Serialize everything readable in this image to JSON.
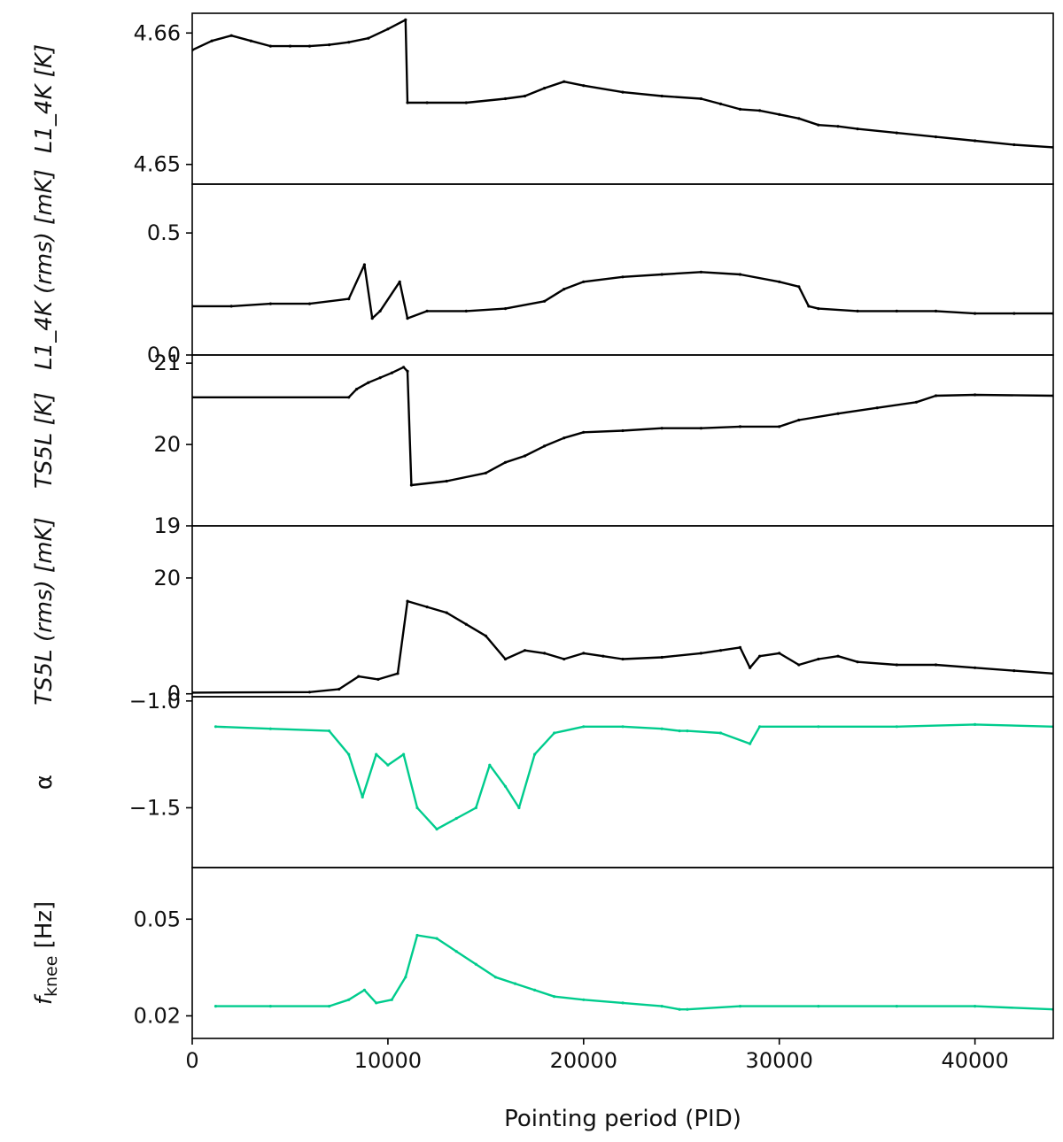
{
  "chart_data": {
    "type": "line",
    "xlabel": "Pointing period (PID)",
    "xlim": [
      0,
      44000
    ],
    "xticks": [
      0,
      10000,
      20000,
      30000,
      40000
    ],
    "xtick_labels": [
      "0",
      "10000",
      "20000",
      "30000",
      "40000"
    ],
    "panels": [
      {
        "id": "l1_4k",
        "ylabel": "L1_4K [K]",
        "color": "#000000",
        "ylim": [
          4.6485,
          4.6615
        ],
        "yticks": [
          4.65,
          4.66
        ],
        "ytick_labels": [
          "4.65",
          "4.66"
        ],
        "x": [
          0,
          1000,
          2000,
          3000,
          4000,
          5000,
          6000,
          7000,
          8000,
          9000,
          10000,
          10900,
          11000,
          12000,
          14000,
          16000,
          17000,
          18000,
          19000,
          20000,
          22000,
          24000,
          26000,
          27000,
          28000,
          29000,
          30000,
          31000,
          32000,
          33000,
          34000,
          36000,
          38000,
          40000,
          42000,
          44000
        ],
        "values": [
          4.6587,
          4.6594,
          4.6598,
          4.6594,
          4.659,
          4.659,
          4.659,
          4.6591,
          4.6593,
          4.6596,
          4.6603,
          4.661,
          4.6547,
          4.6547,
          4.6547,
          4.655,
          4.6552,
          4.6558,
          4.6563,
          4.656,
          4.6555,
          4.6552,
          4.655,
          4.6546,
          4.6542,
          4.6541,
          4.6538,
          4.6535,
          4.653,
          4.6529,
          4.6527,
          4.6524,
          4.6521,
          4.6518,
          4.6515,
          4.6513
        ]
      },
      {
        "id": "l1_4k_rms",
        "ylabel": "L1_4K (rms) [mK]",
        "color": "#000000",
        "ylim": [
          0.0,
          0.7
        ],
        "yticks": [
          0.0,
          0.5
        ],
        "ytick_labels": [
          "0.0",
          "0.5"
        ],
        "x": [
          0,
          2000,
          4000,
          6000,
          8000,
          8800,
          9200,
          9600,
          10600,
          11000,
          12000,
          14000,
          16000,
          18000,
          19000,
          20000,
          22000,
          24000,
          26000,
          28000,
          30000,
          31000,
          31500,
          32000,
          34000,
          36000,
          38000,
          40000,
          42000,
          44000
        ],
        "values": [
          0.2,
          0.2,
          0.21,
          0.21,
          0.23,
          0.37,
          0.15,
          0.18,
          0.3,
          0.15,
          0.18,
          0.18,
          0.19,
          0.22,
          0.27,
          0.3,
          0.32,
          0.33,
          0.34,
          0.33,
          0.3,
          0.28,
          0.2,
          0.19,
          0.18,
          0.18,
          0.18,
          0.17,
          0.17,
          0.17
        ]
      },
      {
        "id": "ts5l",
        "ylabel": "TS5L [K]",
        "color": "#000000",
        "ylim": [
          19.0,
          21.1
        ],
        "yticks": [
          19,
          20,
          21
        ],
        "ytick_labels": [
          "19",
          "20",
          "21"
        ],
        "x": [
          0,
          8000,
          8400,
          9000,
          9600,
          10200,
          10800,
          11000,
          11200,
          13000,
          15000,
          16000,
          17000,
          18000,
          19000,
          20000,
          22000,
          24000,
          26000,
          28000,
          30000,
          31000,
          33000,
          35000,
          37000,
          38000,
          40000,
          44000
        ],
        "values": [
          20.58,
          20.58,
          20.68,
          20.76,
          20.82,
          20.88,
          20.95,
          20.9,
          19.5,
          19.55,
          19.65,
          19.78,
          19.86,
          19.98,
          20.08,
          20.15,
          20.17,
          20.2,
          20.2,
          20.22,
          20.22,
          20.3,
          20.38,
          20.45,
          20.52,
          20.6,
          20.61,
          20.6
        ]
      },
      {
        "id": "ts5l_rms",
        "ylabel": "TS5L (rms) [mK]",
        "color": "#000000",
        "ylim": [
          -0.5,
          29
        ],
        "yticks": [
          0,
          20
        ],
        "ytick_labels": [
          "0",
          "20"
        ],
        "x": [
          0,
          6000,
          7500,
          8500,
          9500,
          10500,
          11000,
          12000,
          13000,
          14000,
          15000,
          16000,
          17000,
          18000,
          19000,
          20000,
          21000,
          22000,
          24000,
          26000,
          27000,
          28000,
          28500,
          29000,
          30000,
          31000,
          32000,
          33000,
          34000,
          36000,
          38000,
          40000,
          42000,
          44000
        ],
        "values": [
          0.2,
          0.3,
          0.8,
          3.0,
          2.5,
          3.5,
          16.0,
          15.0,
          14.0,
          12.0,
          10.0,
          6.0,
          7.5,
          7.0,
          6.0,
          7.0,
          6.5,
          6.0,
          6.3,
          7.0,
          7.5,
          8.0,
          4.5,
          6.5,
          7.0,
          5.0,
          6.0,
          6.5,
          5.5,
          5.0,
          5.0,
          4.5,
          4.0,
          3.5
        ]
      },
      {
        "id": "alpha",
        "ylabel": "α",
        "color": "#00cc8d",
        "ylim": [
          -1.78,
          -0.98
        ],
        "yticks": [
          -1.0,
          -1.5
        ],
        "ytick_labels": [
          "−1.0",
          "−1.5"
        ],
        "x": [
          1200,
          4000,
          7000,
          8000,
          8700,
          9400,
          10000,
          10800,
          11500,
          12500,
          13500,
          14500,
          15200,
          16000,
          16700,
          17500,
          18500,
          20000,
          22000,
          24000,
          24900,
          25300,
          27000,
          28500,
          29000,
          32000,
          36000,
          40000,
          44000
        ],
        "values": [
          -1.12,
          -1.13,
          -1.14,
          -1.25,
          -1.45,
          -1.25,
          -1.3,
          -1.25,
          -1.5,
          -1.6,
          -1.55,
          -1.5,
          -1.3,
          -1.4,
          -1.5,
          -1.25,
          -1.15,
          -1.12,
          -1.12,
          -1.13,
          -1.14,
          -1.14,
          -1.15,
          -1.2,
          -1.12,
          -1.12,
          -1.12,
          -1.11,
          -1.12
        ]
      },
      {
        "id": "fknee",
        "ylabel": "f_knee [Hz]",
        "color": "#00cc8d",
        "ylim": [
          0.013,
          0.066
        ],
        "yticks": [
          0.02,
          0.05
        ],
        "ytick_labels": [
          "0.02",
          "0.05"
        ],
        "x": [
          1200,
          4000,
          7000,
          8000,
          8800,
          9400,
          10200,
          10900,
          11500,
          12500,
          13500,
          14500,
          15500,
          16500,
          17500,
          18500,
          20000,
          22000,
          24000,
          24900,
          25300,
          28000,
          32000,
          36000,
          40000,
          44000
        ],
        "values": [
          0.023,
          0.023,
          0.023,
          0.025,
          0.028,
          0.024,
          0.025,
          0.032,
          0.045,
          0.044,
          0.04,
          0.036,
          0.032,
          0.03,
          0.028,
          0.026,
          0.025,
          0.024,
          0.023,
          0.022,
          0.022,
          0.023,
          0.023,
          0.023,
          0.023,
          0.022
        ]
      }
    ]
  }
}
